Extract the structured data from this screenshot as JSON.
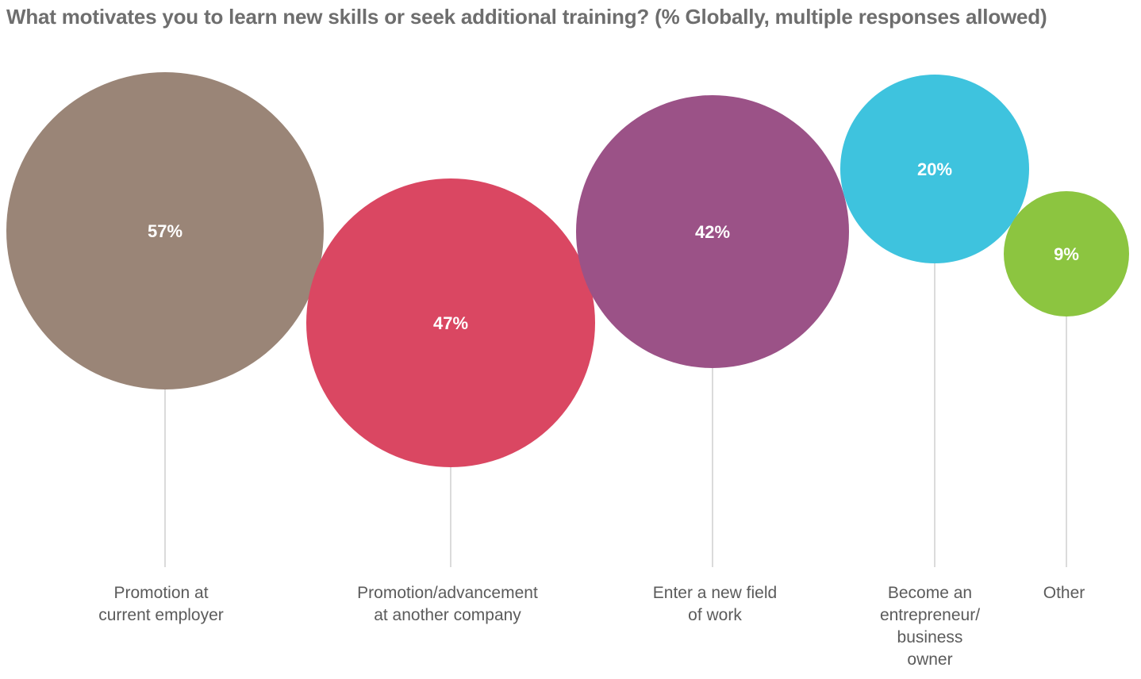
{
  "chart_data": {
    "type": "bubble",
    "title": "What motivates you to learn new skills or seek additional training? (% Globally, multiple responses allowed)",
    "unit": "%",
    "categories": [
      {
        "label": [
          "Promotion at",
          "current employer"
        ],
        "value": 57,
        "color": "#9a8577"
      },
      {
        "label": [
          "Promotion/advancement",
          "at another company"
        ],
        "value": 47,
        "color": "#da4762"
      },
      {
        "label": [
          "Enter a new field",
          "of work"
        ],
        "value": 42,
        "color": "#9b5287"
      },
      {
        "label": [
          "Become an",
          "entrepreneur/",
          "business",
          "owner"
        ],
        "value": 20,
        "color": "#3ec3de"
      },
      {
        "label": [
          "Other"
        ],
        "value": 9,
        "color": "#8cc540"
      }
    ],
    "value_labels": [
      "57%",
      "47%",
      "42%",
      "20%",
      "9%"
    ]
  }
}
